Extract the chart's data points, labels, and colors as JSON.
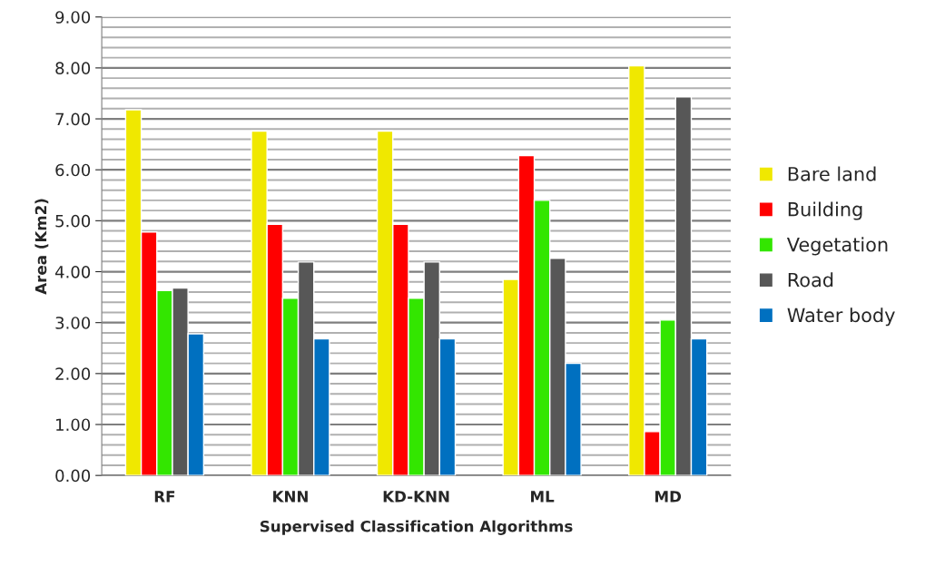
{
  "chart_data": {
    "type": "bar",
    "xlabel": "Supervised Classification Algorithms",
    "ylabel": "Area (Km2)",
    "categories": [
      "RF",
      "KNN",
      "KD-KNN",
      "ML",
      "MD"
    ],
    "series": [
      {
        "name": "Bare land",
        "color": "#f0e800",
        "values": [
          7.18,
          6.76,
          6.76,
          3.85,
          8.04
        ]
      },
      {
        "name": "Building",
        "color": "#ff0000",
        "values": [
          4.78,
          4.93,
          4.93,
          6.28,
          0.86
        ]
      },
      {
        "name": "Vegetation",
        "color": "#33e600",
        "values": [
          3.63,
          3.48,
          3.48,
          5.4,
          3.05
        ]
      },
      {
        "name": "Road",
        "color": "#575757",
        "values": [
          3.68,
          4.19,
          4.19,
          4.26,
          7.43
        ]
      },
      {
        "name": "Water body",
        "color": "#0070c0",
        "values": [
          2.78,
          2.68,
          2.68,
          2.2,
          2.68
        ]
      }
    ],
    "ylim": [
      0,
      9
    ],
    "yticks": [
      {
        "value": 0,
        "label": "0.00"
      },
      {
        "value": 1,
        "label": "1.00"
      },
      {
        "value": 2,
        "label": "2.00"
      },
      {
        "value": 3,
        "label": "3.00"
      },
      {
        "value": 4,
        "label": "4.00"
      },
      {
        "value": 5,
        "label": "5.00"
      },
      {
        "value": 6,
        "label": "6.00"
      },
      {
        "value": 7,
        "label": "7.00"
      },
      {
        "value": 8,
        "label": "8.00"
      },
      {
        "value": 9,
        "label": "9.00"
      }
    ],
    "grid": "y",
    "legend": "right"
  }
}
